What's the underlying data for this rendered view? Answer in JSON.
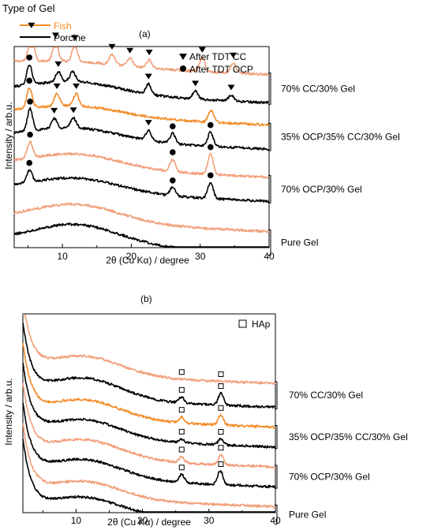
{
  "legend": {
    "title": "Type of  Gel",
    "entries": [
      {
        "label": "Fish",
        "color": "#f28c28"
      },
      {
        "label": "Porcine",
        "color": "#000000"
      }
    ]
  },
  "colors": {
    "fish_light": "#f29f7a",
    "fish": "#f28c28",
    "porcine": "#000000"
  },
  "chart_data": [
    {
      "type": "line",
      "panel_label": "(a)",
      "xlabel": "2θ (Cu Kα) / degree",
      "ylabel": "Intensity / arb.u.",
      "xlim": [
        3,
        40
      ],
      "xticks": [
        10,
        20,
        30,
        40
      ],
      "grid": false,
      "y_ticks": "none",
      "marker_legend": [
        {
          "symbol": "triangle-down",
          "label": "After TDT CC"
        },
        {
          "symbol": "circle",
          "label": "After TDT  OCP"
        }
      ],
      "groups": [
        {
          "label": "70% CC/30% Gel"
        },
        {
          "label": "35% OCP/35% CC/30% Gel"
        },
        {
          "label": "70% OCP/30% Gel"
        },
        {
          "label": "Pure Gel"
        }
      ],
      "series": [
        {
          "color": "fish_light",
          "group": 0,
          "offset": 0.92,
          "amorph": 0.02,
          "peaks": [
            [
              5.5,
              0.14
            ],
            [
              9.0,
              0.09
            ],
            [
              11.8,
              0.08
            ],
            [
              17.2,
              0.05
            ],
            [
              19.8,
              0.04
            ],
            [
              22.6,
              0.04
            ],
            [
              30.3,
              0.07
            ],
            [
              34.8,
              0.05
            ]
          ],
          "markers": [
            {
              "symbol": "triangle-down",
              "x": [
                5.5,
                9.0,
                11.8,
                17.2,
                19.8,
                22.6,
                30.3,
                34.8
              ]
            }
          ]
        },
        {
          "color": "porcine",
          "group": 0,
          "offset": 0.78,
          "amorph": 0.06,
          "peaks": [
            [
              5.2,
              0.1
            ],
            [
              9.4,
              0.05
            ],
            [
              11.5,
              0.05
            ],
            [
              22.5,
              0.05
            ],
            [
              29.3,
              0.04
            ],
            [
              34.5,
              0.03
            ]
          ],
          "markers": [
            {
              "symbol": "triangle-down",
              "x": [
                9.4,
                22.5,
                29.3,
                34.5
              ]
            },
            {
              "symbol": "circle",
              "x": [
                5.2
              ]
            }
          ]
        },
        {
          "color": "fish",
          "group": 1,
          "offset": 0.67,
          "amorph": 0.05,
          "peaks": [
            [
              5.2,
              0.1
            ],
            [
              9.2,
              0.06
            ],
            [
              12.0,
              0.06
            ],
            [
              31.6,
              0.06
            ]
          ],
          "markers": [
            {
              "symbol": "triangle-down",
              "x": [
                9.2,
                12.0
              ]
            },
            {
              "symbol": "circle",
              "x": [
                5.2
              ]
            }
          ]
        },
        {
          "color": "porcine",
          "group": 1,
          "offset": 0.55,
          "amorph": 0.06,
          "peaks": [
            [
              5.3,
              0.11
            ],
            [
              8.8,
              0.05
            ],
            [
              11.6,
              0.05
            ],
            [
              22.5,
              0.05
            ],
            [
              26.0,
              0.05
            ],
            [
              31.5,
              0.07
            ]
          ],
          "markers": [
            {
              "symbol": "triangle-down",
              "x": [
                8.8,
                11.6,
                22.5
              ]
            },
            {
              "symbol": "circle",
              "x": [
                5.3,
                26.0,
                31.5
              ]
            }
          ]
        },
        {
          "color": "fish_light",
          "group": 2,
          "offset": 0.41,
          "amorph": 0.07,
          "peaks": [
            [
              5.3,
              0.08
            ],
            [
              26.0,
              0.06
            ],
            [
              31.5,
              0.1
            ]
          ],
          "markers": [
            {
              "symbol": "circle",
              "x": [
                5.3,
                26.0,
                31.5
              ]
            }
          ]
        },
        {
          "color": "porcine",
          "group": 2,
          "offset": 0.29,
          "amorph": 0.07,
          "peaks": [
            [
              5.2,
              0.06
            ],
            [
              26.0,
              0.04
            ],
            [
              31.5,
              0.08
            ]
          ],
          "markers": [
            {
              "symbol": "circle",
              "x": [
                5.2,
                26.0,
                31.5
              ]
            }
          ]
        },
        {
          "color": "fish_light",
          "group": 3,
          "offset": 0.14,
          "amorph": 0.09,
          "peaks": [],
          "markers": []
        },
        {
          "color": "porcine",
          "group": 3,
          "offset": 0.03,
          "amorph": 0.1,
          "peaks": [],
          "markers": []
        }
      ]
    },
    {
      "type": "line",
      "panel_label": "(b)",
      "xlabel": "2θ (Cu Kα) / degree",
      "ylabel": "Intensity / arb.u.",
      "xlim": [
        2,
        40
      ],
      "xticks": [
        10,
        20,
        30,
        40
      ],
      "grid": false,
      "y_ticks": "none",
      "marker_legend": [
        {
          "symbol": "square",
          "label": "HAp"
        }
      ],
      "groups": [
        {
          "label": "70% CC/30% Gel"
        },
        {
          "label": "35% OCP/35% CC/30% Gel"
        },
        {
          "label": "70% OCP/30% Gel"
        },
        {
          "label": "Pure Gel"
        }
      ],
      "series": [
        {
          "color": "fish_light",
          "group": 0,
          "offset": 0.7,
          "amorph": 0.1,
          "peaks": [],
          "markers": [
            {
              "symbol": "square",
              "x": [
                25.9,
                31.8
              ]
            }
          ]
        },
        {
          "color": "porcine",
          "group": 0,
          "offset": 0.58,
          "amorph": 0.11,
          "peaks": [
            [
              25.9,
              0.03
            ],
            [
              31.8,
              0.06
            ]
          ],
          "markers": [
            {
              "symbol": "square",
              "x": [
                25.9,
                31.8
              ]
            }
          ]
        },
        {
          "color": "fish",
          "group": 1,
          "offset": 0.48,
          "amorph": 0.1,
          "peaks": [
            [
              25.9,
              0.03
            ],
            [
              31.8,
              0.05
            ]
          ],
          "markers": [
            {
              "symbol": "square",
              "x": [
                25.9,
                31.8
              ]
            }
          ]
        },
        {
          "color": "porcine",
          "group": 1,
          "offset": 0.38,
          "amorph": 0.1,
          "peaks": [
            [
              25.9,
              0.02
            ],
            [
              31.8,
              0.03
            ]
          ],
          "markers": [
            {
              "symbol": "square",
              "x": [
                25.9,
                31.8
              ]
            }
          ]
        },
        {
          "color": "fish_light",
          "group": 2,
          "offset": 0.28,
          "amorph": 0.1,
          "peaks": [
            [
              25.9,
              0.03
            ],
            [
              31.8,
              0.05
            ]
          ],
          "markers": [
            {
              "symbol": "square",
              "x": [
                25.9,
                31.8
              ]
            }
          ]
        },
        {
          "color": "porcine",
          "group": 2,
          "offset": 0.18,
          "amorph": 0.1,
          "peaks": [
            [
              25.9,
              0.04
            ],
            [
              31.7,
              0.07
            ]
          ],
          "markers": [
            {
              "symbol": "square",
              "x": [
                25.9,
                31.8
              ]
            }
          ]
        },
        {
          "color": "fish_light",
          "group": 3,
          "offset": 0.08,
          "amorph": 0.09,
          "peaks": [],
          "markers": []
        },
        {
          "color": "porcine",
          "group": 3,
          "offset": 0.0,
          "amorph": 0.09,
          "peaks": [],
          "markers": []
        }
      ]
    }
  ]
}
